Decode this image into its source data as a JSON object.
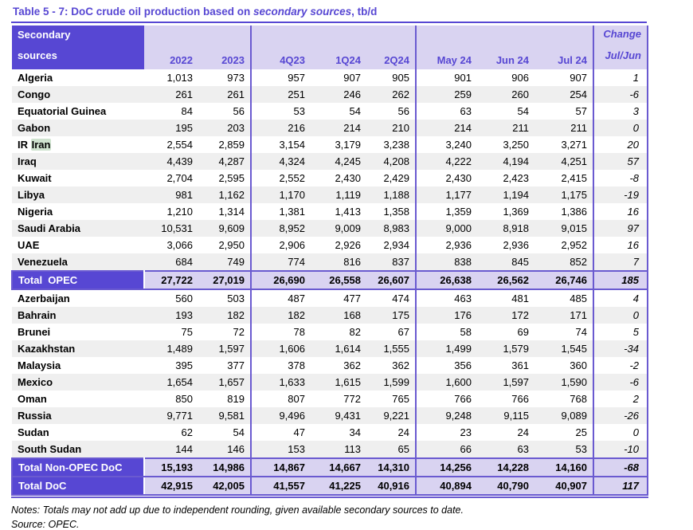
{
  "title": {
    "prefix": "Table 5 - 7: DoC crude oil production based on ",
    "italic": "secondary sources",
    "suffix": ", tb/d"
  },
  "table": {
    "header": {
      "label_line1": "Secondary",
      "label_line2": "sources",
      "columns": [
        "2022",
        "2023",
        "4Q23",
        "1Q24",
        "2Q24",
        "May 24",
        "Jun 24",
        "Jul 24"
      ],
      "change_line1": "Change",
      "change_line2": "Jul/Jun"
    },
    "opec_rows": [
      {
        "label": "Algeria",
        "values": [
          "1,013",
          "973",
          "957",
          "907",
          "905",
          "901",
          "906",
          "907"
        ],
        "change": "1"
      },
      {
        "label": "Congo",
        "values": [
          "261",
          "261",
          "251",
          "246",
          "262",
          "259",
          "260",
          "254"
        ],
        "change": "-6"
      },
      {
        "label": "Equatorial Guinea",
        "values": [
          "84",
          "56",
          "53",
          "54",
          "56",
          "63",
          "54",
          "57"
        ],
        "change": "3"
      },
      {
        "label": "Gabon",
        "values": [
          "195",
          "203",
          "216",
          "214",
          "210",
          "214",
          "211",
          "211"
        ],
        "change": "0"
      },
      {
        "label": "IR Iran",
        "highlight": "Iran",
        "values": [
          "2,554",
          "2,859",
          "3,154",
          "3,179",
          "3,238",
          "3,240",
          "3,250",
          "3,271"
        ],
        "change": "20"
      },
      {
        "label": "Iraq",
        "values": [
          "4,439",
          "4,287",
          "4,324",
          "4,245",
          "4,208",
          "4,222",
          "4,194",
          "4,251"
        ],
        "change": "57"
      },
      {
        "label": "Kuwait",
        "values": [
          "2,704",
          "2,595",
          "2,552",
          "2,430",
          "2,429",
          "2,430",
          "2,423",
          "2,415"
        ],
        "change": "-8"
      },
      {
        "label": "Libya",
        "values": [
          "981",
          "1,162",
          "1,170",
          "1,119",
          "1,188",
          "1,177",
          "1,194",
          "1,175"
        ],
        "change": "-19"
      },
      {
        "label": "Nigeria",
        "values": [
          "1,210",
          "1,314",
          "1,381",
          "1,413",
          "1,358",
          "1,359",
          "1,369",
          "1,386"
        ],
        "change": "16"
      },
      {
        "label": "Saudi Arabia",
        "values": [
          "10,531",
          "9,609",
          "8,952",
          "9,009",
          "8,983",
          "9,000",
          "8,918",
          "9,015"
        ],
        "change": "97"
      },
      {
        "label": "UAE",
        "values": [
          "3,066",
          "2,950",
          "2,906",
          "2,926",
          "2,934",
          "2,936",
          "2,936",
          "2,952"
        ],
        "change": "16"
      },
      {
        "label": "Venezuela",
        "values": [
          "684",
          "749",
          "774",
          "816",
          "837",
          "838",
          "845",
          "852"
        ],
        "change": "7"
      }
    ],
    "total_opec": {
      "label": "Total  OPEC",
      "values": [
        "27,722",
        "27,019",
        "26,690",
        "26,558",
        "26,607",
        "26,638",
        "26,562",
        "26,746"
      ],
      "change": "185"
    },
    "non_opec_rows": [
      {
        "label": "Azerbaijan",
        "values": [
          "560",
          "503",
          "487",
          "477",
          "474",
          "463",
          "481",
          "485"
        ],
        "change": "4"
      },
      {
        "label": "Bahrain",
        "values": [
          "193",
          "182",
          "182",
          "168",
          "175",
          "176",
          "172",
          "171"
        ],
        "change": "0"
      },
      {
        "label": "Brunei",
        "values": [
          "75",
          "72",
          "78",
          "82",
          "67",
          "58",
          "69",
          "74"
        ],
        "change": "5"
      },
      {
        "label": "Kazakhstan",
        "values": [
          "1,489",
          "1,597",
          "1,606",
          "1,614",
          "1,555",
          "1,499",
          "1,579",
          "1,545"
        ],
        "change": "-34"
      },
      {
        "label": "Malaysia",
        "values": [
          "395",
          "377",
          "378",
          "362",
          "362",
          "356",
          "361",
          "360"
        ],
        "change": "-2"
      },
      {
        "label": "Mexico",
        "values": [
          "1,654",
          "1,657",
          "1,633",
          "1,615",
          "1,599",
          "1,600",
          "1,597",
          "1,590"
        ],
        "change": "-6"
      },
      {
        "label": "Oman",
        "values": [
          "850",
          "819",
          "807",
          "772",
          "765",
          "766",
          "766",
          "768"
        ],
        "change": "2"
      },
      {
        "label": "Russia",
        "values": [
          "9,771",
          "9,581",
          "9,496",
          "9,431",
          "9,221",
          "9,248",
          "9,115",
          "9,089"
        ],
        "change": "-26"
      },
      {
        "label": "Sudan",
        "values": [
          "62",
          "54",
          "47",
          "34",
          "24",
          "23",
          "24",
          "25"
        ],
        "change": "0"
      },
      {
        "label": "South Sudan",
        "values": [
          "144",
          "146",
          "153",
          "113",
          "65",
          "66",
          "63",
          "53"
        ],
        "change": "-10"
      }
    ],
    "total_non_opec": {
      "label": "Total Non-OPEC DoC",
      "values": [
        "15,193",
        "14,986",
        "14,867",
        "14,667",
        "14,310",
        "14,256",
        "14,228",
        "14,160"
      ],
      "change": "-68"
    },
    "total_doc": {
      "label": "Total DoC",
      "values": [
        "42,915",
        "42,005",
        "41,557",
        "41,225",
        "40,916",
        "40,894",
        "40,790",
        "40,907"
      ],
      "change": "117"
    }
  },
  "notes": "Notes: Totals may not add up due to independent rounding, given available secondary sources to date.",
  "source": "Source: OPEC.",
  "colors": {
    "accent": "#5747d3",
    "lav": "#d9d3f1",
    "stripe": "#efefef",
    "sep": "#6a5ad0",
    "hl": "#cfe3cf"
  }
}
